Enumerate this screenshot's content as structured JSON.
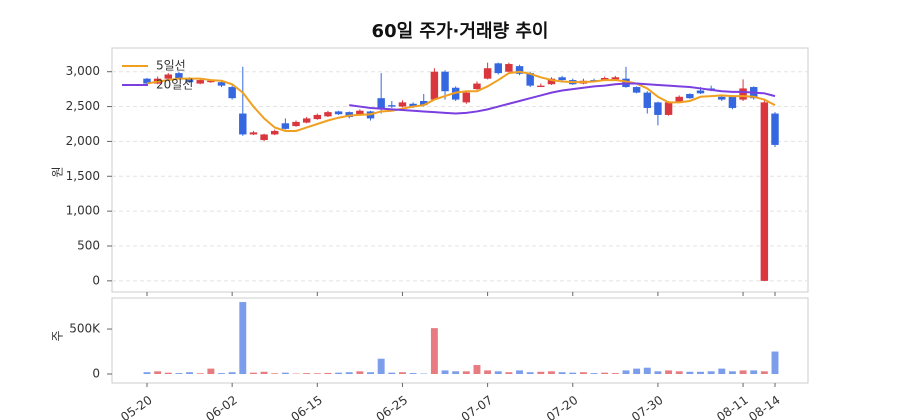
{
  "chart_data": [
    {
      "type": "candlestick",
      "title": "60일 주가·거래량 추이",
      "ylabel": "원",
      "ylim": [
        -160,
        3340
      ],
      "yticks": [
        0,
        500,
        {
          "value": 1000,
          "label": "1,000"
        },
        {
          "value": 1500,
          "label": "1,500"
        },
        {
          "value": 2000,
          "label": "2,000"
        },
        {
          "value": 2500,
          "label": "2,500"
        },
        {
          "value": 3000,
          "label": "3,000"
        }
      ],
      "grid": true,
      "up_color": "#d9363e",
      "down_color": "#3568e0",
      "legend": "upper left",
      "open": [
        2900,
        2830,
        2900,
        2980,
        2900,
        2830,
        2850,
        2850,
        2780,
        2400,
        2100,
        2020,
        2100,
        2260,
        2220,
        2270,
        2320,
        2360,
        2430,
        2420,
        2380,
        2430,
        2620,
        2520,
        2500,
        2540,
        2580,
        2600,
        3000,
        2770,
        2560,
        2750,
        2900,
        3120,
        3000,
        3080,
        2980,
        2780,
        2820,
        2920,
        2880,
        2830,
        2880,
        2880,
        2890,
        2900,
        2780,
        2700,
        2560,
        2380,
        2570,
        2680,
        2730,
        2760,
        2640,
        2640,
        2600,
        2780,
        0,
        2400
      ],
      "high": [
        2910,
        2930,
        2980,
        3000,
        2920,
        2890,
        2890,
        2860,
        2800,
        3070,
        2150,
        2110,
        2170,
        2330,
        2300,
        2350,
        2400,
        2440,
        2440,
        2430,
        2460,
        2440,
        2980,
        2580,
        2590,
        2560,
        2680,
        3050,
        3020,
        2790,
        2720,
        2860,
        3130,
        3130,
        3130,
        3100,
        3000,
        2830,
        2920,
        2940,
        2900,
        2900,
        2900,
        2930,
        2940,
        3070,
        2790,
        2720,
        2570,
        2580,
        2660,
        2690,
        2780,
        2800,
        2660,
        2660,
        2890,
        2790,
        2600,
        2420
      ],
      "low": [
        2800,
        2820,
        2890,
        2890,
        2840,
        2820,
        2840,
        2780,
        2600,
        2080,
        2090,
        2000,
        2090,
        2170,
        2210,
        2260,
        2310,
        2350,
        2380,
        2330,
        2370,
        2300,
        2400,
        2480,
        2490,
        2480,
        2500,
        2600,
        2600,
        2580,
        2540,
        2740,
        2890,
        2960,
        2990,
        2950,
        2780,
        2780,
        2810,
        2870,
        2810,
        2820,
        2860,
        2870,
        2880,
        2770,
        2690,
        2400,
        2230,
        2370,
        2560,
        2610,
        2680,
        2720,
        2580,
        2460,
        2580,
        2600,
        0,
        1920
      ],
      "close": [
        2830,
        2900,
        2960,
        2900,
        2850,
        2880,
        2870,
        2800,
        2620,
        2100,
        2130,
        2100,
        2150,
        2180,
        2280,
        2330,
        2380,
        2420,
        2390,
        2350,
        2440,
        2330,
        2460,
        2500,
        2560,
        2500,
        2520,
        3000,
        2720,
        2600,
        2700,
        2830,
        3050,
        2980,
        3110,
        2970,
        2800,
        2800,
        2900,
        2880,
        2820,
        2870,
        2870,
        2910,
        2920,
        2780,
        2700,
        2480,
        2380,
        2560,
        2640,
        2620,
        2690,
        2730,
        2600,
        2480,
        2760,
        2620,
        2560,
        1950
      ],
      "series": [
        {
          "name": "5일선",
          "color": "#f0a020",
          "values": [
            2830,
            2860,
            2880,
            2900,
            2900,
            2900,
            2880,
            2870,
            2820,
            2700,
            2500,
            2330,
            2200,
            2150,
            2150,
            2200,
            2250,
            2300,
            2340,
            2370,
            2380,
            2390,
            2430,
            2440,
            2470,
            2500,
            2520,
            2600,
            2650,
            2700,
            2720,
            2720,
            2790,
            2880,
            2980,
            3000,
            2970,
            2920,
            2880,
            2860,
            2850,
            2850,
            2860,
            2880,
            2880,
            2860,
            2830,
            2760,
            2640,
            2560,
            2560,
            2580,
            2640,
            2650,
            2660,
            2650,
            2650,
            2640,
            2600,
            2520
          ]
        },
        {
          "name": "20일선",
          "color": "#7b3fe0",
          "values": [
            null,
            null,
            null,
            null,
            null,
            null,
            null,
            null,
            null,
            null,
            null,
            null,
            null,
            null,
            null,
            null,
            null,
            null,
            null,
            2520,
            2500,
            2480,
            2470,
            2460,
            2450,
            2440,
            2430,
            2420,
            2410,
            2400,
            2410,
            2430,
            2460,
            2500,
            2540,
            2580,
            2620,
            2660,
            2700,
            2730,
            2750,
            2770,
            2790,
            2800,
            2820,
            2830,
            2830,
            2820,
            2810,
            2800,
            2790,
            2780,
            2760,
            2740,
            2720,
            2710,
            2710,
            2700,
            2690,
            2650
          ]
        }
      ]
    },
    {
      "type": "bar",
      "ylabel": "주",
      "ylim": [
        -100000,
        845000
      ],
      "yticks": [
        0,
        {
          "value": 500000,
          "label": "500K"
        }
      ],
      "categories": [
        "05-20",
        null,
        null,
        null,
        null,
        null,
        null,
        null,
        "06-02",
        null,
        null,
        null,
        null,
        null,
        null,
        null,
        "06-15",
        null,
        null,
        null,
        null,
        null,
        null,
        null,
        "06-25",
        null,
        null,
        null,
        null,
        null,
        null,
        null,
        "07-07",
        null,
        null,
        null,
        null,
        null,
        null,
        null,
        "07-20",
        null,
        null,
        null,
        null,
        null,
        null,
        null,
        "07-30",
        null,
        null,
        null,
        null,
        null,
        null,
        null,
        "08-11",
        null,
        null,
        "08-14"
      ],
      "values": [
        20000,
        30000,
        15000,
        10000,
        20000,
        8000,
        60000,
        10000,
        20000,
        800000,
        15000,
        25000,
        8000,
        15000,
        5000,
        10000,
        8000,
        12000,
        15000,
        20000,
        30000,
        20000,
        170000,
        15000,
        20000,
        10000,
        5000,
        510000,
        40000,
        30000,
        30000,
        100000,
        40000,
        30000,
        20000,
        40000,
        20000,
        25000,
        30000,
        20000,
        15000,
        20000,
        10000,
        15000,
        10000,
        40000,
        60000,
        70000,
        30000,
        40000,
        30000,
        25000,
        25000,
        30000,
        60000,
        30000,
        40000,
        40000,
        30000,
        250000
      ]
    }
  ]
}
